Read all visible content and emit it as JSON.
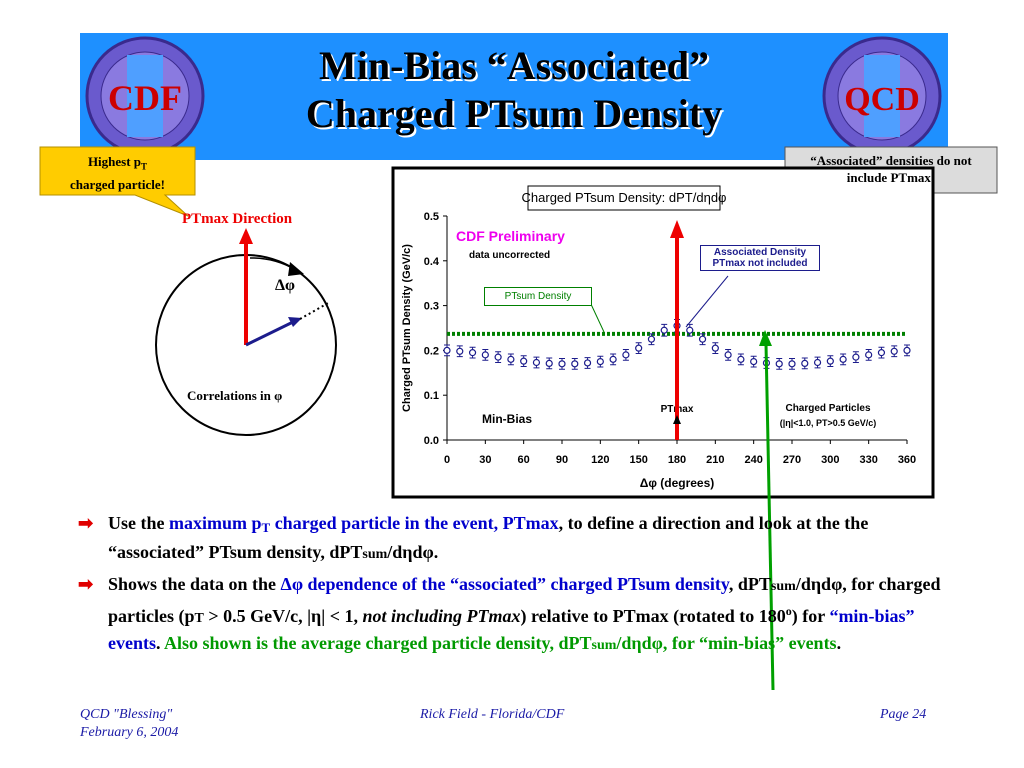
{
  "header": {
    "title_lines": [
      "Min-Bias “Associated”",
      "Charged PTsum Density"
    ],
    "logos": [
      "CDF",
      "QCD"
    ]
  },
  "callout_left": {
    "text": "Highest p",
    "sub": "T",
    "text2": "charged particle!"
  },
  "callout_right": "“Associated” densities do not include PTmax!",
  "diagram": {
    "direction": "PTmax Direction",
    "angle": "Δφ",
    "caption": "Correlations in φ"
  },
  "chart_data": {
    "type": "scatter",
    "title": "Charged PTsum Density: dPT/dηdφ",
    "ylabel": "Charged PTsum Density (GeV/c)",
    "xlabel": "Δφ  (degrees)",
    "annotations": {
      "preliminary": "CDF Preliminary",
      "uncorrected": "data uncorrected",
      "sample": "Min-Bias",
      "ptmax": "PTmax",
      "particles": "Charged Particles",
      "cuts": "(|η|<1.0, PT>0.5 GeV/c)"
    },
    "xlim": [
      0,
      360
    ],
    "xticks": [
      0,
      30,
      60,
      90,
      120,
      150,
      180,
      210,
      240,
      270,
      300,
      330,
      360
    ],
    "ylim": [
      0,
      0.5
    ],
    "yticks": [
      {
        "value": 0,
        "label": "0.0"
      },
      0.1,
      0.2,
      0.3,
      0.4,
      0.5
    ],
    "grid": false,
    "series": [
      {
        "name": "Associated Density PTmax not included",
        "color": "#1c1c8c",
        "x": [
          0,
          10,
          20,
          30,
          40,
          50,
          60,
          70,
          80,
          90,
          100,
          110,
          120,
          130,
          140,
          150,
          160,
          170,
          180,
          190,
          200,
          210,
          220,
          230,
          240,
          250,
          260,
          270,
          280,
          290,
          300,
          310,
          320,
          330,
          340,
          350,
          360
        ],
        "values": [
          0.2,
          0.198,
          0.195,
          0.19,
          0.185,
          0.18,
          0.176,
          0.173,
          0.171,
          0.17,
          0.17,
          0.172,
          0.175,
          0.18,
          0.19,
          0.205,
          0.225,
          0.245,
          0.255,
          0.245,
          0.225,
          0.205,
          0.19,
          0.18,
          0.175,
          0.172,
          0.17,
          0.17,
          0.171,
          0.173,
          0.176,
          0.18,
          0.185,
          0.19,
          0.195,
          0.198,
          0.2
        ],
        "errors": [
          0.012,
          0.012,
          0.012,
          0.012,
          0.012,
          0.012,
          0.012,
          0.012,
          0.012,
          0.012,
          0.012,
          0.012,
          0.012,
          0.012,
          0.012,
          0.012,
          0.012,
          0.013,
          0.014,
          0.013,
          0.012,
          0.012,
          0.012,
          0.012,
          0.012,
          0.012,
          0.012,
          0.012,
          0.012,
          0.012,
          0.012,
          0.012,
          0.012,
          0.012,
          0.012,
          0.012,
          0.012
        ]
      },
      {
        "name": "PTsum Density",
        "color": "#008000",
        "x": [
          0,
          360
        ],
        "values": [
          0.237,
          0.237
        ]
      }
    ]
  },
  "bullets": [
    [
      {
        "t": "Use the ",
        "s": "k"
      },
      {
        "t": "maximum p",
        "s": "b"
      },
      {
        "t": "T",
        "s": "bs"
      },
      {
        "t": " charged particle in the event, PTmax",
        "s": "b"
      },
      {
        "t": ", to define a direction and look at the the “associated” PTsum density, dPT",
        "s": "k"
      },
      {
        "t": "sum",
        "s": "ks"
      },
      {
        "t": "/dηdφ.",
        "s": "k"
      }
    ],
    [
      {
        "t": "Shows the data on the ",
        "s": "k"
      },
      {
        "t": "Δφ dependence of the “associated” charged PTsum density",
        "s": "b"
      },
      {
        "t": ", dPT",
        "s": "k"
      },
      {
        "t": "sum",
        "s": "ks"
      },
      {
        "t": "/dηdφ, for charged particles (p",
        "s": "k"
      },
      {
        "t": "T",
        "s": "ks"
      },
      {
        "t": " > 0.5 GeV/c, |η| < 1, ",
        "s": "k"
      },
      {
        "t": "not including PTmax",
        "s": "i"
      },
      {
        "t": ") relative to PTmax (rotated to 180",
        "s": "k"
      },
      {
        "t": "o",
        "s": "ksup"
      },
      {
        "t": ") for ",
        "s": "k"
      },
      {
        "t": "“min-bias” events",
        "s": "b"
      },
      {
        "t": ".  ",
        "s": "k"
      },
      {
        "t": "Also shown is the average charged particle density, dPT",
        "s": "g"
      },
      {
        "t": "sum",
        "s": "gs"
      },
      {
        "t": "/dηdφ, for “min-bias” events",
        "s": "g"
      },
      {
        "t": ".",
        "s": "k"
      }
    ]
  ],
  "footer": {
    "left": [
      "QCD \"Blessing\"",
      "February 6, 2004"
    ],
    "center": "Rick Field - Florida/CDF",
    "right": "Page 24"
  }
}
